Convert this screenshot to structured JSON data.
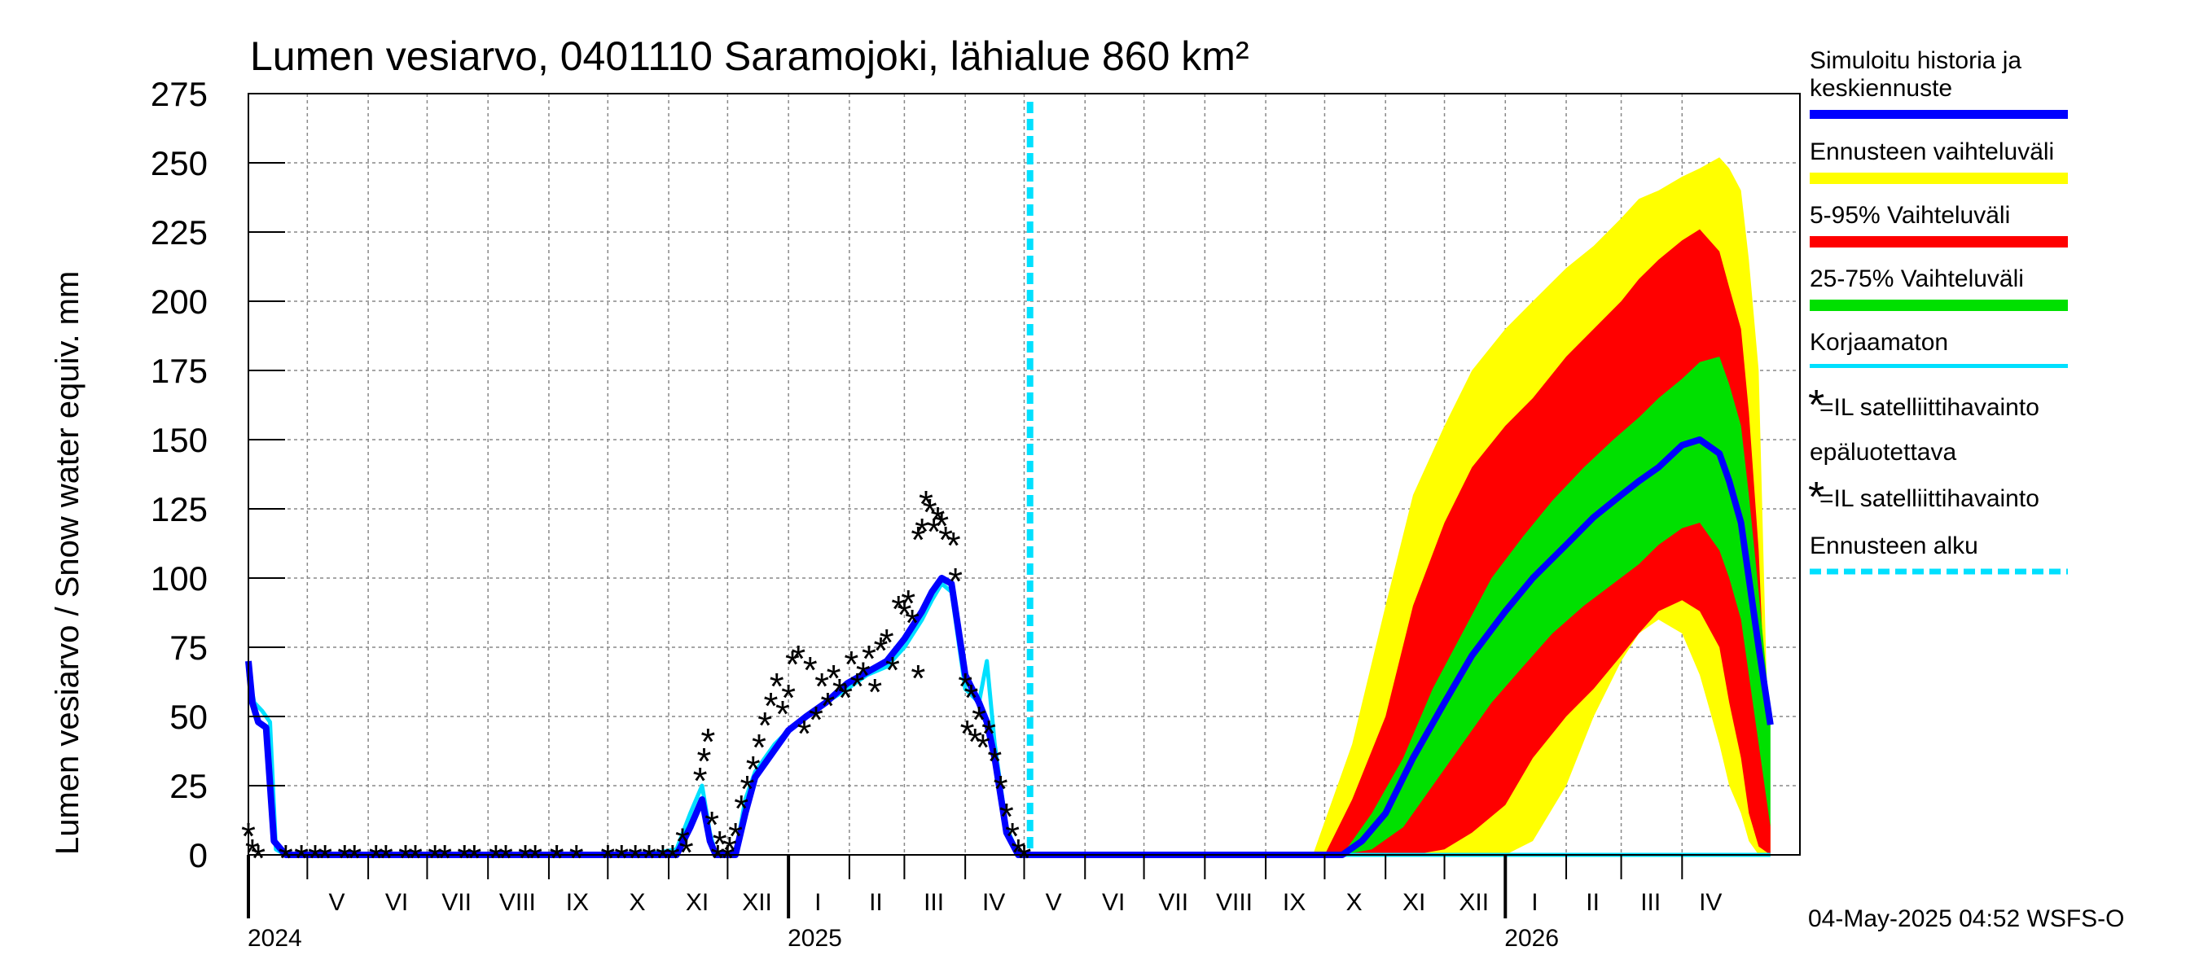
{
  "chart_data": {
    "type": "area",
    "title": "Lumen vesiarvo, 0401110 Saramojoki, lähialue 860 km²",
    "ylabel": "Lumen vesiarvo / Snow water equiv.    mm",
    "ylim": [
      0,
      275
    ],
    "yticks": [
      0,
      25,
      50,
      75,
      100,
      125,
      150,
      175,
      200,
      225,
      250,
      275
    ],
    "xlim": [
      "2024-04-01",
      "2026-05-31"
    ],
    "grid": true,
    "forecast_start": "2025-05-04",
    "months": [
      {
        "label": "V",
        "start": "2024-05-01",
        "end": "2024-05-31"
      },
      {
        "label": "VI",
        "start": "2024-06-01",
        "end": "2024-06-30"
      },
      {
        "label": "VII",
        "start": "2024-07-01",
        "end": "2024-07-31"
      },
      {
        "label": "VIII",
        "start": "2024-08-01",
        "end": "2024-08-31"
      },
      {
        "label": "IX",
        "start": "2024-09-01",
        "end": "2024-09-30"
      },
      {
        "label": "X",
        "start": "2024-10-01",
        "end": "2024-10-31"
      },
      {
        "label": "XI",
        "start": "2024-11-01",
        "end": "2024-11-30"
      },
      {
        "label": "XII",
        "start": "2024-12-01",
        "end": "2024-12-31"
      },
      {
        "label": "I",
        "start": "2025-01-01",
        "end": "2025-01-31"
      },
      {
        "label": "II",
        "start": "2025-02-01",
        "end": "2025-02-28"
      },
      {
        "label": "III",
        "start": "2025-03-01",
        "end": "2025-03-31"
      },
      {
        "label": "IV",
        "start": "2025-04-01",
        "end": "2025-04-30"
      },
      {
        "label": "V",
        "start": "2025-05-01",
        "end": "2025-05-31"
      },
      {
        "label": "VI",
        "start": "2025-06-01",
        "end": "2025-06-30"
      },
      {
        "label": "VII",
        "start": "2025-07-01",
        "end": "2025-07-31"
      },
      {
        "label": "VIII",
        "start": "2025-08-01",
        "end": "2025-08-31"
      },
      {
        "label": "IX",
        "start": "2025-09-01",
        "end": "2025-09-30"
      },
      {
        "label": "X",
        "start": "2025-10-01",
        "end": "2025-10-31"
      },
      {
        "label": "XI",
        "start": "2025-11-01",
        "end": "2025-11-30"
      },
      {
        "label": "XII",
        "start": "2025-12-01",
        "end": "2025-12-31"
      },
      {
        "label": "I",
        "start": "2026-01-01",
        "end": "2026-01-31"
      },
      {
        "label": "II",
        "start": "2026-02-01",
        "end": "2026-02-28"
      },
      {
        "label": "III",
        "start": "2026-03-01",
        "end": "2026-03-31"
      },
      {
        "label": "IV",
        "start": "2026-04-01",
        "end": "2026-04-30"
      }
    ],
    "years": [
      {
        "label": "2024",
        "at": "2024-04-01"
      },
      {
        "label": "2025",
        "at": "2025-01-01"
      },
      {
        "label": "2026",
        "at": "2026-01-01"
      }
    ],
    "bands": [
      {
        "key": "range",
        "color": "#ffff00",
        "x": [
          "2025-09-25",
          "2025-10-15",
          "2025-11-01",
          "2025-11-15",
          "2025-12-01",
          "2025-12-15",
          "2026-01-01",
          "2026-01-15",
          "2026-02-01",
          "2026-02-15",
          "2026-03-01",
          "2026-03-10",
          "2026-03-20",
          "2026-04-01",
          "2026-04-10",
          "2026-04-20",
          "2026-04-25",
          "2026-05-01",
          "2026-05-05",
          "2026-05-10",
          "2026-05-16"
        ],
        "upper": [
          0,
          40,
          90,
          130,
          155,
          175,
          190,
          200,
          212,
          220,
          230,
          237,
          240,
          245,
          248,
          252,
          248,
          240,
          215,
          175,
          10
        ],
        "lower": [
          0,
          0,
          0,
          0,
          0,
          0,
          0,
          5,
          25,
          50,
          70,
          80,
          85,
          80,
          65,
          40,
          25,
          15,
          5,
          0,
          0
        ]
      },
      {
        "key": "p5_95",
        "color": "#ff0000",
        "x": [
          "2025-10-01",
          "2025-10-15",
          "2025-11-01",
          "2025-11-15",
          "2025-12-01",
          "2025-12-15",
          "2026-01-01",
          "2026-01-15",
          "2026-02-01",
          "2026-02-15",
          "2026-03-01",
          "2026-03-10",
          "2026-03-20",
          "2026-04-01",
          "2026-04-10",
          "2026-04-20",
          "2026-04-25",
          "2026-05-01",
          "2026-05-05",
          "2026-05-10",
          "2026-05-16"
        ],
        "upper": [
          0,
          20,
          50,
          90,
          120,
          140,
          155,
          165,
          180,
          190,
          200,
          208,
          215,
          222,
          226,
          218,
          205,
          190,
          160,
          110,
          10
        ],
        "lower": [
          0,
          0,
          0,
          0,
          2,
          8,
          18,
          35,
          50,
          60,
          72,
          80,
          88,
          92,
          88,
          75,
          55,
          35,
          15,
          3,
          0
        ]
      },
      {
        "key": "p25_75",
        "color": "#00e000",
        "x": [
          "2025-10-10",
          "2025-10-25",
          "2025-11-10",
          "2025-11-25",
          "2025-12-10",
          "2025-12-25",
          "2026-01-10",
          "2026-01-25",
          "2026-02-10",
          "2026-02-25",
          "2026-03-10",
          "2026-03-20",
          "2026-04-01",
          "2026-04-10",
          "2026-04-20",
          "2026-04-25",
          "2026-05-01",
          "2026-05-05",
          "2026-05-10",
          "2026-05-16"
        ],
        "upper": [
          0,
          15,
          35,
          60,
          80,
          100,
          115,
          128,
          140,
          150,
          158,
          165,
          172,
          178,
          180,
          170,
          155,
          130,
          95,
          50
        ],
        "lower": [
          0,
          2,
          10,
          25,
          40,
          55,
          68,
          80,
          90,
          98,
          105,
          112,
          118,
          120,
          110,
          100,
          85,
          65,
          40,
          10
        ]
      }
    ],
    "series": [
      {
        "key": "uncorrected",
        "color": "#00e0ff",
        "width": 5,
        "x": [
          "2024-04-01",
          "2024-04-04",
          "2024-04-08",
          "2024-04-12",
          "2024-04-15",
          "2024-04-20",
          "2024-10-20",
          "2024-11-05",
          "2024-11-12",
          "2024-11-18",
          "2024-11-22",
          "2024-11-25",
          "2024-12-05",
          "2024-12-10",
          "2024-12-15",
          "2024-12-20",
          "2024-12-25",
          "2025-01-01",
          "2025-01-10",
          "2025-01-20",
          "2025-01-31",
          "2025-02-10",
          "2025-02-20",
          "2025-03-01",
          "2025-03-10",
          "2025-03-15",
          "2025-03-20",
          "2025-03-25",
          "2025-04-01",
          "2025-04-08",
          "2025-04-12",
          "2025-04-16",
          "2025-04-22",
          "2025-04-28",
          "2025-05-04",
          "2026-05-16"
        ],
        "y": [
          65,
          55,
          52,
          48,
          2,
          0,
          0,
          2,
          15,
          25,
          8,
          0,
          0,
          20,
          30,
          35,
          40,
          45,
          50,
          55,
          60,
          65,
          68,
          75,
          85,
          92,
          98,
          95,
          60,
          55,
          70,
          40,
          10,
          0,
          0,
          0
        ]
      },
      {
        "key": "simulated",
        "color": "#0000ff",
        "width": 8,
        "x": [
          "2024-04-01",
          "2024-04-03",
          "2024-04-06",
          "2024-04-10",
          "2024-04-14",
          "2024-04-20",
          "2024-05-01",
          "2024-11-05",
          "2024-11-12",
          "2024-11-18",
          "2024-11-22",
          "2024-11-25",
          "2024-12-05",
          "2024-12-10",
          "2024-12-15",
          "2024-12-20",
          "2024-12-25",
          "2025-01-01",
          "2025-01-10",
          "2025-01-20",
          "2025-01-31",
          "2025-02-10",
          "2025-02-20",
          "2025-03-01",
          "2025-03-10",
          "2025-03-15",
          "2025-03-20",
          "2025-03-25",
          "2025-04-01",
          "2025-04-08",
          "2025-04-12",
          "2025-04-16",
          "2025-04-22",
          "2025-04-28",
          "2025-05-04",
          "2025-10-01",
          "2025-10-10",
          "2025-10-20",
          "2025-11-01",
          "2025-11-15",
          "2025-12-01",
          "2025-12-15",
          "2026-01-01",
          "2026-01-15",
          "2026-02-01",
          "2026-02-15",
          "2026-03-01",
          "2026-03-10",
          "2026-03-20",
          "2026-04-01",
          "2026-04-10",
          "2026-04-20",
          "2026-04-25",
          "2026-05-01",
          "2026-05-05",
          "2026-05-10",
          "2026-05-16"
        ],
        "y": [
          70,
          55,
          48,
          46,
          5,
          0,
          0,
          0,
          10,
          20,
          5,
          0,
          0,
          15,
          28,
          33,
          38,
          45,
          50,
          55,
          62,
          66,
          70,
          78,
          88,
          95,
          100,
          98,
          65,
          55,
          48,
          35,
          8,
          0,
          0,
          0,
          0,
          5,
          15,
          35,
          55,
          72,
          88,
          100,
          112,
          122,
          130,
          135,
          140,
          148,
          150,
          145,
          135,
          120,
          100,
          75,
          47
        ]
      }
    ],
    "observations_unreliable": {
      "marker": "*",
      "color": "#000000",
      "x": [
        "2024-04-28",
        "2024-05-10",
        "2024-05-25",
        "2024-06-10",
        "2024-06-25",
        "2024-07-10",
        "2024-07-25",
        "2024-08-10",
        "2024-08-25",
        "2024-09-05",
        "2024-09-15",
        "2024-11-08",
        "2024-11-10",
        "2024-11-17",
        "2024-11-19",
        "2024-11-21",
        "2024-11-23",
        "2024-11-27",
        "2024-12-02",
        "2024-12-05",
        "2024-12-08",
        "2024-12-11",
        "2024-12-14",
        "2024-12-17",
        "2024-12-20",
        "2024-12-23",
        "2024-12-26",
        "2024-12-29",
        "2025-01-01",
        "2025-01-03",
        "2025-01-06",
        "2025-01-09",
        "2025-01-12",
        "2025-01-15",
        "2025-01-18",
        "2025-01-21",
        "2025-01-24",
        "2025-01-27",
        "2025-01-30",
        "2025-02-02",
        "2025-02-05",
        "2025-02-08",
        "2025-02-11",
        "2025-02-14",
        "2025-02-17",
        "2025-02-20",
        "2025-02-23",
        "2025-02-26",
        "2025-03-01",
        "2025-03-03",
        "2025-03-05",
        "2025-03-08",
        "2025-03-10",
        "2025-03-12",
        "2025-03-14",
        "2025-03-16",
        "2025-03-18",
        "2025-03-20",
        "2025-03-22"
      ],
      "y": [
        0,
        0,
        0,
        0,
        0,
        0,
        0,
        0,
        0,
        0,
        0,
        6,
        2,
        28,
        35,
        42,
        12,
        5,
        3,
        8,
        18,
        25,
        32,
        40,
        48,
        55,
        62,
        52,
        58,
        70,
        72,
        45,
        68,
        50,
        62,
        55,
        65,
        60,
        58,
        70,
        62,
        66,
        72,
        60,
        75,
        78,
        68,
        90,
        88,
        92,
        85,
        115,
        118,
        128,
        125,
        118,
        122,
        120,
        115
      ]
    },
    "observations_il": {
      "marker": "*",
      "color": "#ff0000",
      "x": [
        "2024-04-01",
        "2024-04-03",
        "2024-04-06",
        "2024-04-20",
        "2024-05-05",
        "2024-05-20",
        "2024-06-05",
        "2024-06-20",
        "2024-07-05",
        "2024-07-20",
        "2024-08-05",
        "2024-08-20",
        "2024-09-05",
        "2024-10-01",
        "2024-10-08",
        "2024-10-15",
        "2024-10-22",
        "2024-10-29",
        "2024-11-03",
        "2024-11-26",
        "2024-12-01",
        "2025-03-08",
        "2025-03-26",
        "2025-03-27",
        "2025-04-01",
        "2025-04-02",
        "2025-04-04",
        "2025-04-06",
        "2025-04-08",
        "2025-04-10",
        "2025-04-13",
        "2025-04-16",
        "2025-04-19",
        "2025-04-22",
        "2025-04-25",
        "2025-04-28",
        "2025-05-01"
      ],
      "y": [
        8,
        2,
        0,
        0,
        0,
        0,
        0,
        0,
        0,
        0,
        0,
        0,
        0,
        0,
        0,
        0,
        0,
        0,
        0,
        0,
        0,
        65,
        113,
        100,
        62,
        45,
        58,
        42,
        50,
        40,
        45,
        35,
        25,
        15,
        8,
        2,
        0
      ]
    }
  },
  "legend": {
    "simulated": "Simuloitu historia ja keskiennuste",
    "simulated_line1": "Simuloitu historia ja",
    "simulated_line2": "keskiennuste",
    "range": "Ennusteen vaihteluväli",
    "p5_95": "5-95% Vaihteluväli",
    "p25_75": "25-75% Vaihteluväli",
    "uncorrected": "Korjaamaton",
    "il_obs": "=IL satelliittihavainto",
    "unreliable_label": "epäluotettava",
    "unreliable_obs": "=IL satelliittihavainto",
    "forecast_start": "Ennusteen alku",
    "colors": {
      "simulated": "#0000ff",
      "range": "#ffff00",
      "p5_95": "#ff0000",
      "p25_75": "#00e000",
      "uncorrected": "#00e0ff",
      "il_star": "#ff0000",
      "unreliable_star": "#000000",
      "forecast_start": "#00e0ff"
    }
  },
  "footer": "04-May-2025 04:52 WSFS-O"
}
